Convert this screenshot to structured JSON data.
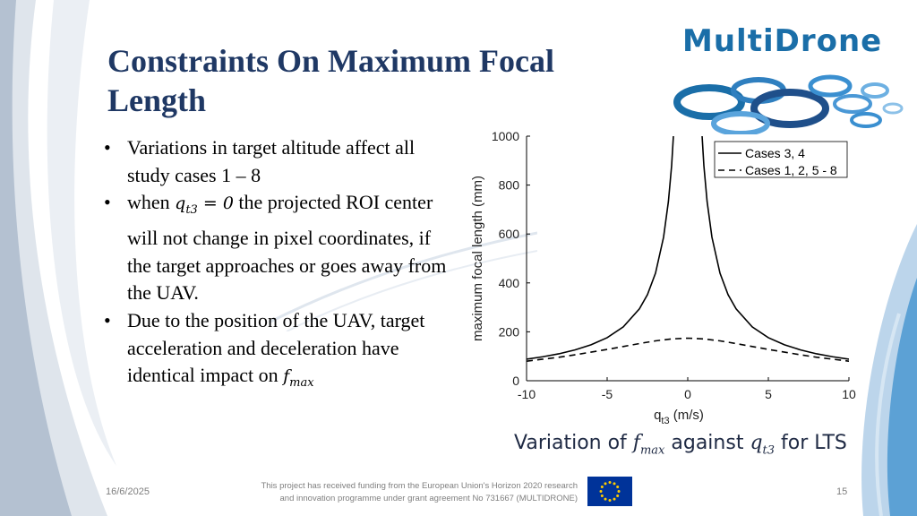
{
  "slide": {
    "title_line1": "Constraints On Maximum Focal",
    "title_line2": "Length",
    "bullets": {
      "b1": "Variations in target altitude affect all study cases 1 – 8",
      "b2_pre": "when ",
      "b2_var": "q",
      "b2_sub": "t3",
      "b2_eq": " = 0",
      "b2_post": " the projected ROI center will not change in pixel coordinates, if the target approaches or goes away from the UAV.",
      "b3_pre": "Due to the position of the UAV, target acceleration and deceleration have identical impact on ",
      "b3_var": "f",
      "b3_sub": "max"
    },
    "caption": {
      "pre": "Variation of ",
      "f": "f",
      "f_sub": "max",
      "mid": " against ",
      "q": "q",
      "q_sub": "t3",
      "post": " for LTS"
    },
    "footer": {
      "date": "16/6/2025",
      "funding_line1": "This project has received funding from the European Union's Horizon 2020 research",
      "funding_line2": "and innovation programme under grant agreement No 731667 (MULTIDRONE)",
      "page": "15"
    },
    "logo_text": "MultiDrone",
    "colors": {
      "title": "#1f3864",
      "logo": "#1a6ea8",
      "eu_flag": "#003399",
      "eu_stars": "#ffcc00"
    }
  },
  "chart_data": {
    "type": "line",
    "xlabel": "q",
    "xlabel_sub": "t3",
    "xlabel_unit": " (m/s)",
    "ylabel": "maximum focal length (mm)",
    "xlim": [
      -10,
      10
    ],
    "ylim": [
      0,
      1000
    ],
    "xticks": [
      "-10",
      "-5",
      "0",
      "5",
      "10"
    ],
    "yticks": [
      "0",
      "200",
      "400",
      "600",
      "800",
      "1000"
    ],
    "legend_position": "top-right",
    "series": [
      {
        "name": "Cases 3, 4",
        "style": "solid",
        "x": [
          -10,
          -9,
          -8,
          -7,
          -6,
          -5,
          -4,
          -3,
          -2.5,
          -2,
          -1.5,
          -1.2,
          -1,
          -0.8,
          -0.6,
          0.6,
          0.8,
          1,
          1.2,
          1.5,
          2,
          2.5,
          3,
          4,
          5,
          6,
          7,
          8,
          9,
          10
        ],
        "y": [
          88,
          98,
          110,
          126,
          147,
          176,
          220,
          294,
          352,
          440,
          587,
          733,
          880,
          1100,
          1467,
          1467,
          1100,
          880,
          733,
          587,
          440,
          352,
          294,
          220,
          176,
          147,
          126,
          110,
          98,
          88
        ]
      },
      {
        "name": "Cases 1, 2, 5 - 8",
        "style": "dashed",
        "x": [
          -10,
          -9,
          -8,
          -7,
          -6,
          -5,
          -4,
          -3,
          -2,
          -1,
          0,
          1,
          2,
          3,
          4,
          5,
          6,
          7,
          8,
          9,
          10
        ],
        "y": [
          80,
          88,
          96,
          106,
          117,
          128,
          140,
          152,
          163,
          171,
          174,
          171,
          163,
          152,
          140,
          128,
          117,
          106,
          96,
          88,
          80
        ]
      }
    ]
  }
}
